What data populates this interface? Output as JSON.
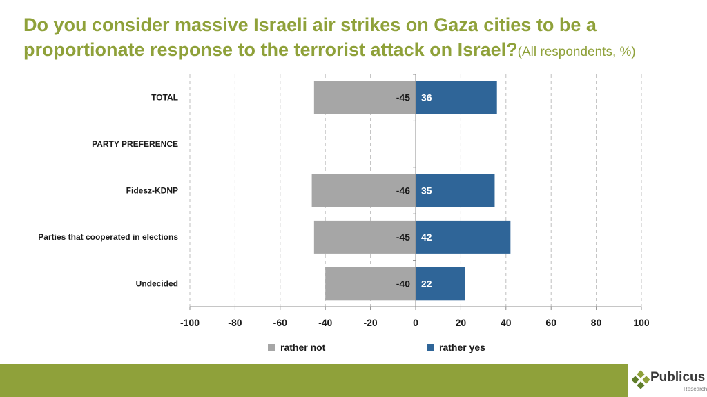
{
  "title": {
    "main": "Do you consider massive Israeli air strikes on Gaza cities to be a proportionate response to the terrorist attack on Israel?",
    "subtitle": "(All respondents, %)"
  },
  "legend": {
    "rather_not": "rather not",
    "rather_yes": "rather yes"
  },
  "logo": {
    "name": "Publicus",
    "sub": "Research"
  },
  "colors": {
    "title": "#8fa13a",
    "rather_not": "#a6a6a6",
    "rather_yes": "#2f6598",
    "footer": "#8fa13a"
  },
  "chart_data": {
    "type": "bar",
    "orientation": "horizontal",
    "stacked": "diverging",
    "categories": [
      "TOTAL",
      "PARTY PREFERENCE",
      "Fidesz-KDNP",
      "Parties that cooperated in elections",
      "Undecided"
    ],
    "series": [
      {
        "name": "rather not",
        "values": [
          -45,
          null,
          -46,
          -45,
          -40
        ]
      },
      {
        "name": "rather yes",
        "values": [
          36,
          null,
          35,
          42,
          22
        ]
      }
    ],
    "xlim": [
      -100,
      100
    ],
    "xticks": [
      "-100",
      "-80",
      "-60",
      "-40",
      "-20",
      "0",
      "20",
      "40",
      "60",
      "80",
      "100"
    ],
    "grid": "vertical dashed",
    "legend_position": "bottom"
  }
}
